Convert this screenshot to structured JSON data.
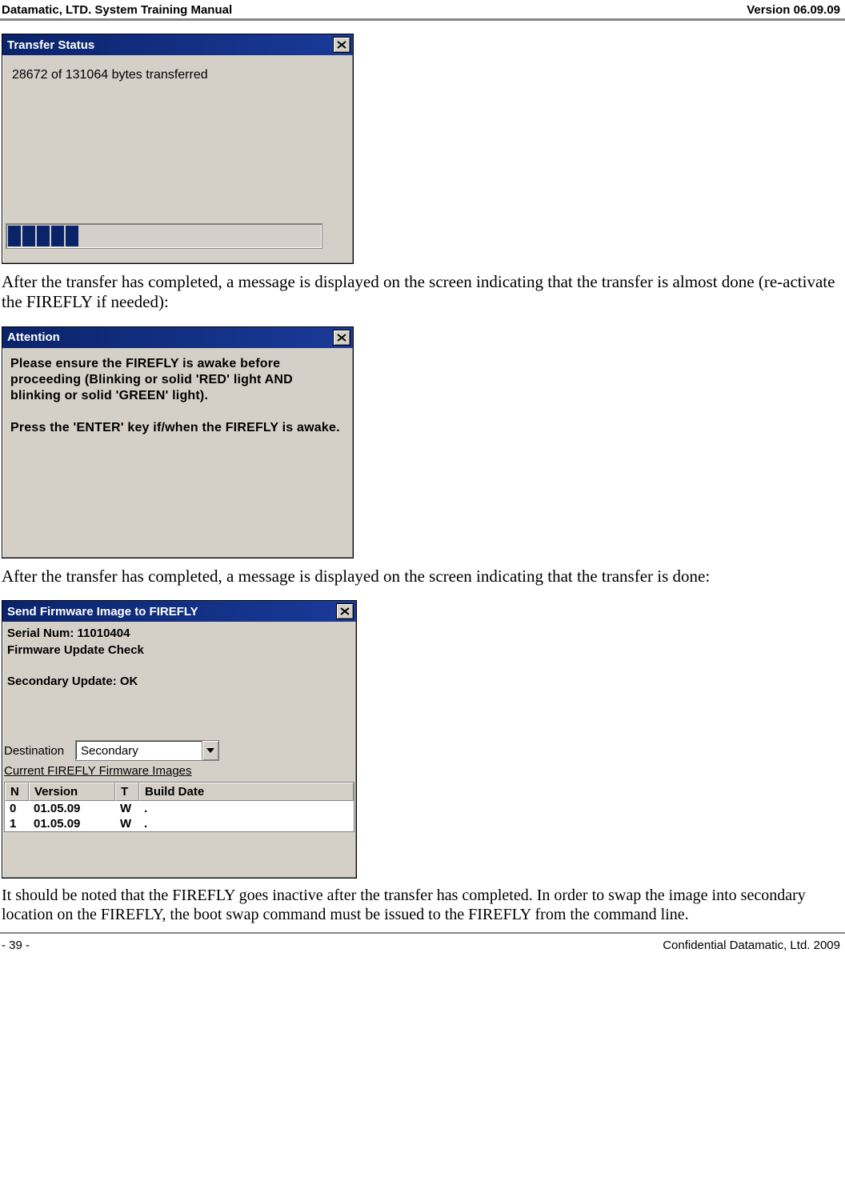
{
  "header": {
    "left": "Datamatic, LTD. System Training  Manual",
    "right": "Version 06.09.09"
  },
  "dlg1": {
    "title": "Transfer Status",
    "text": "28672 of 131064 bytes transferred",
    "progress_blocks": 5,
    "progress_total_width": 22,
    "colors": {
      "titlebar_start": "#0a246a",
      "titlebar_end": "#1a3a9a",
      "chrome": "#d4d0c8",
      "block": "#0a246a"
    }
  },
  "para1": "After the transfer has completed, a message is displayed on the screen indicating that the transfer is almost done (re-activate the FIREFLY if needed):",
  "dlg2": {
    "title": "Attention",
    "line1": "Please ensure the FIREFLY is awake before proceeding (Blinking or solid 'RED' light AND blinking or solid 'GREEN' light).",
    "line2": "Press the 'ENTER' key if/when the FIREFLY is awake."
  },
  "para2": "After the transfer has completed, a message is displayed on the screen indicating that the transfer is done:",
  "dlg3": {
    "title": "Send Firmware Image to FIREFLY",
    "serial_label": "Serial Num: 11010404",
    "check_label": "Firmware Update Check",
    "status": "Secondary Update: OK",
    "dest_label": "Destination",
    "dest_value": "Secondary",
    "section": "Current FIREFLY Firmware Images",
    "columns": [
      "N",
      "Version",
      "T",
      "Build Date"
    ],
    "rows": [
      [
        "0",
        "01.05.09",
        "W",
        "."
      ],
      [
        "1",
        "01.05.09",
        "W",
        "."
      ]
    ]
  },
  "para3": "It should be noted that the FIREFLY goes inactive after the transfer has completed.  In order to swap the image into secondary location on the FIREFLY, the boot swap command must be issued to the FIREFLY from the command line.",
  "footer": {
    "left": "- 39 -",
    "right": "Confidential Datamatic, Ltd. 2009"
  }
}
